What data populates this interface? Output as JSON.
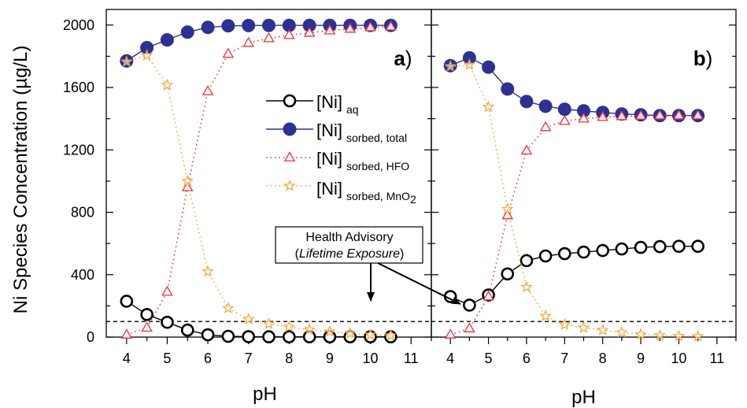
{
  "chart_data": {
    "type": "line",
    "ylabel": "Ni Species Concentration (µg/L)",
    "ylim": [
      0,
      2100
    ],
    "yticks": [
      0,
      400,
      800,
      1200,
      1600,
      2000
    ],
    "grid": false,
    "legend_placement": "center of panel a",
    "colors": {
      "aq": "#000000",
      "sorbed_total": "#2e3192",
      "hfo": "#e8323a",
      "mno2": "#f2a33a",
      "reference_line": "#000000"
    },
    "legend": [
      {
        "key": "aq",
        "base": "[Ni]",
        "sub": "aq"
      },
      {
        "key": "sorbed_total",
        "base": "[Ni]",
        "sub": "sorbed, total"
      },
      {
        "key": "hfo",
        "base": "[Ni]",
        "sub": "sorbed, HFO"
      },
      {
        "key": "mno2",
        "base": "[Ni]",
        "sub": "sorbed, MnO",
        "sub2": "2"
      }
    ],
    "annotation": {
      "line1": "Health Advisory",
      "line2_open": "(",
      "line2_italic": "Lifetime Exposure",
      "line2_close": ")",
      "value": 100
    },
    "panels": [
      {
        "label": "a",
        "label_suffix": ")",
        "xlabel": "pH",
        "xlim": [
          3.5,
          11.5
        ],
        "xticks": [
          4,
          5,
          6,
          7,
          8,
          9,
          10,
          11
        ],
        "x": [
          4,
          4.5,
          5,
          5.5,
          6,
          6.5,
          7,
          7.5,
          8,
          8.5,
          9,
          9.5,
          10,
          10.5
        ],
        "series": [
          {
            "key": "aq",
            "values": [
              230,
              145,
              95,
              45,
              15,
              5,
              3,
              2,
              2,
              2,
              2,
              2,
              2,
              2
            ]
          },
          {
            "key": "sorbed_total",
            "values": [
              1770,
              1855,
              1905,
              1955,
              1985,
              1995,
              1997,
              1998,
              1998,
              1998,
              1998,
              1998,
              1998,
              1998
            ]
          },
          {
            "key": "hfo",
            "values": [
              15,
              60,
              290,
              960,
              1575,
              1815,
              1885,
              1915,
              1935,
              1950,
              1965,
              1975,
              1985,
              1990
            ]
          },
          {
            "key": "mno2",
            "values": [
              1765,
              1805,
              1615,
              1000,
              420,
              185,
              115,
              85,
              65,
              48,
              35,
              25,
              15,
              10
            ]
          }
        ]
      },
      {
        "label": "b",
        "label_suffix": ")",
        "xlabel": "pH",
        "xlim": [
          3.5,
          11.5
        ],
        "xticks": [
          4,
          5,
          6,
          7,
          8,
          9,
          10,
          11
        ],
        "x": [
          4,
          4.5,
          5,
          5.5,
          6,
          6.5,
          7,
          7.5,
          8,
          8.5,
          9,
          9.5,
          10,
          10.5
        ],
        "series": [
          {
            "key": "aq",
            "values": [
              260,
              205,
              270,
              405,
              490,
              520,
              535,
              545,
              555,
              565,
              575,
              580,
              582,
              582
            ]
          },
          {
            "key": "sorbed_total",
            "values": [
              1740,
              1790,
              1730,
              1590,
              1510,
              1480,
              1460,
              1450,
              1440,
              1430,
              1425,
              1420,
              1420,
              1420
            ]
          },
          {
            "key": "hfo",
            "values": [
              15,
              55,
              260,
              780,
              1195,
              1345,
              1385,
              1400,
              1410,
              1415,
              1418,
              1420,
              1420,
              1420
            ]
          },
          {
            "key": "mno2",
            "values": [
              1735,
              1745,
              1475,
              820,
              320,
              135,
              80,
              60,
              45,
              30,
              18,
              10,
              6,
              5
            ]
          }
        ]
      }
    ]
  }
}
